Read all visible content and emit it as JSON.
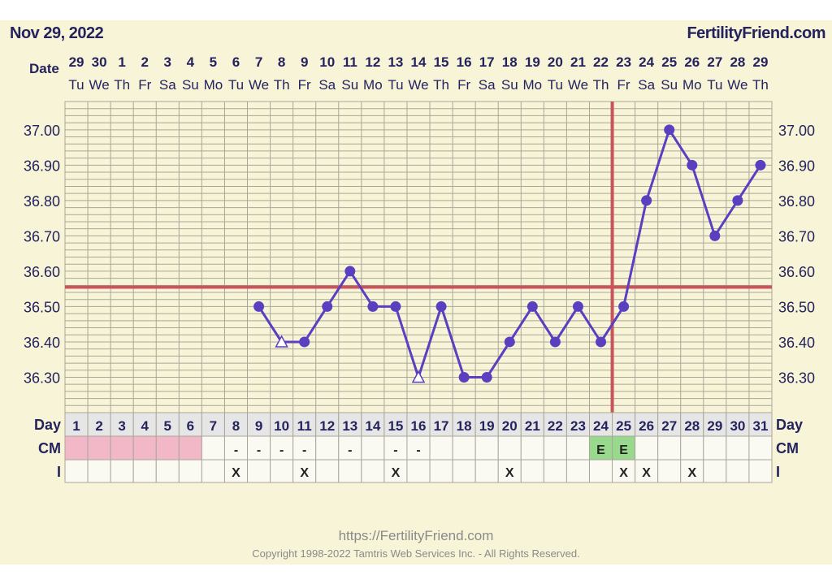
{
  "header": {
    "date": "Nov 29, 2022",
    "site": "FertilityFriend.com"
  },
  "footer": {
    "url": "https://FertilityFriend.com",
    "copyright": "Copyright 1998-2022 Tamtris Web Services Inc. - All Rights Reserved."
  },
  "colors": {
    "line": "#5a3fc0",
    "coverline": "#c8555b",
    "grid": "#a9a79a",
    "text": "#25235e",
    "period": "#f2b8c8",
    "fertile": "#98d98e"
  },
  "chart_data": {
    "type": "line",
    "row_labels": {
      "date": "Date",
      "day": "Day",
      "cm": "CM",
      "i": "I"
    },
    "dates": [
      "29",
      "30",
      "1",
      "2",
      "3",
      "4",
      "5",
      "6",
      "7",
      "8",
      "9",
      "10",
      "11",
      "12",
      "13",
      "14",
      "15",
      "16",
      "17",
      "18",
      "19",
      "20",
      "21",
      "22",
      "23",
      "24",
      "25",
      "26",
      "27",
      "28",
      "29"
    ],
    "weekdays": [
      "Tu",
      "We",
      "Th",
      "Fr",
      "Sa",
      "Su",
      "Mo",
      "Tu",
      "We",
      "Th",
      "Fr",
      "Sa",
      "Su",
      "Mo",
      "Tu",
      "We",
      "Th",
      "Fr",
      "Sa",
      "Su",
      "Mo",
      "Tu",
      "We",
      "Th",
      "Fr",
      "Sa",
      "Su",
      "Mo",
      "Tu",
      "We",
      "Th"
    ],
    "days": [
      "1",
      "2",
      "3",
      "4",
      "5",
      "6",
      "7",
      "8",
      "9",
      "10",
      "11",
      "12",
      "13",
      "14",
      "15",
      "16",
      "17",
      "18",
      "19",
      "20",
      "21",
      "22",
      "23",
      "24",
      "25",
      "26",
      "27",
      "28",
      "29",
      "30",
      "31"
    ],
    "yticks": [
      "37.00",
      "36.90",
      "36.80",
      "36.70",
      "36.60",
      "36.50",
      "36.40",
      "36.30"
    ],
    "ylim": [
      36.2,
      37.08
    ],
    "temps": [
      null,
      null,
      null,
      null,
      null,
      null,
      null,
      null,
      36.5,
      36.4,
      36.4,
      36.5,
      36.6,
      36.5,
      36.5,
      36.3,
      36.5,
      36.3,
      36.3,
      36.4,
      36.5,
      36.4,
      36.5,
      36.4,
      36.5,
      36.8,
      37.0,
      36.9,
      36.7,
      36.8,
      36.9
    ],
    "open_markers": [
      10,
      16
    ],
    "coverline": 36.555,
    "ovulation_day": 24,
    "period_days": [
      1,
      2,
      3,
      4,
      5,
      6
    ],
    "cm": [
      "",
      "",
      "",
      "",
      "",
      "",
      "",
      "-",
      "-",
      "-",
      "-",
      "",
      "-",
      "",
      "-",
      "-",
      "",
      "",
      "",
      "",
      "",
      "",
      "",
      "E",
      "E",
      "",
      "",
      "",
      "",
      "",
      ""
    ],
    "intercourse": [
      "",
      "",
      "",
      "",
      "",
      "",
      "",
      "X",
      "",
      "",
      "X",
      "",
      "",
      "",
      "X",
      "",
      "",
      "",
      "",
      "X",
      "",
      "",
      "",
      "",
      "X",
      "X",
      "",
      "X",
      "",
      "",
      ""
    ]
  }
}
